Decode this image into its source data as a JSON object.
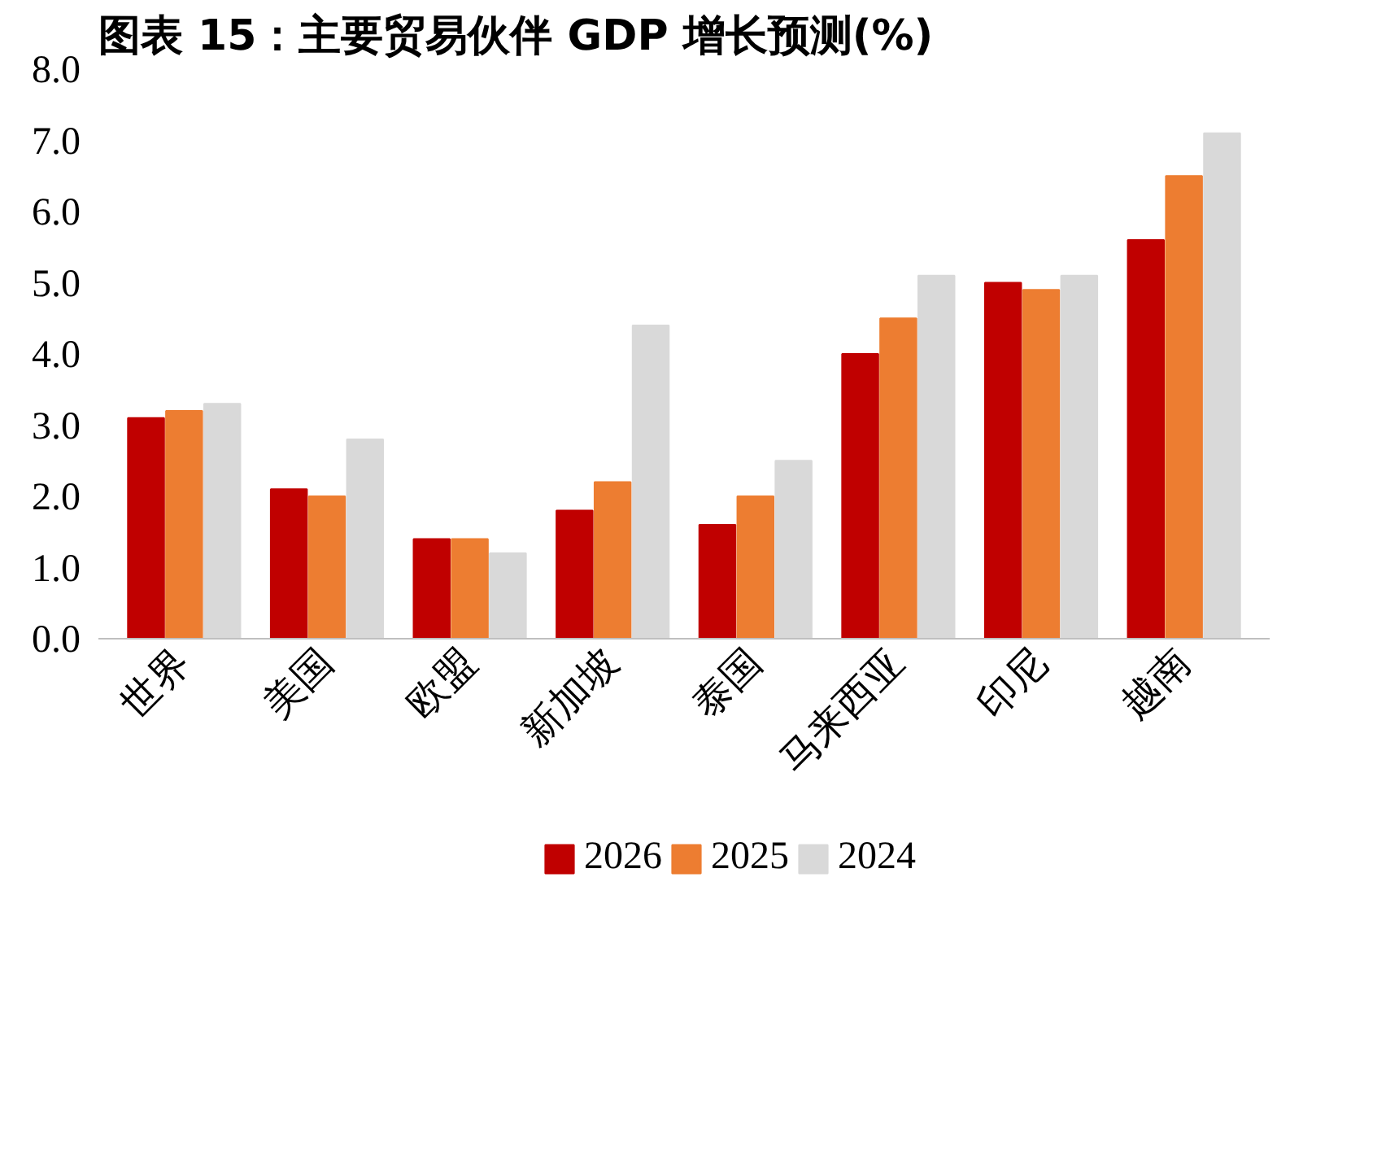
{
  "chart_data": {
    "type": "bar",
    "title": "图表 15：主要贸易伙伴 GDP 增长预测(%)",
    "categories": [
      "世界",
      "美国",
      "欧盟",
      "新加坡",
      "泰国",
      "马来西亚",
      "印尼",
      "越南"
    ],
    "series": [
      {
        "name": "2026",
        "color": "#c00000",
        "values": [
          3.1,
          2.1,
          1.4,
          1.8,
          1.6,
          4.0,
          5.0,
          5.6
        ]
      },
      {
        "name": "2025",
        "color": "#ed7d31",
        "values": [
          3.2,
          2.0,
          1.4,
          2.2,
          2.0,
          4.5,
          4.9,
          6.5
        ]
      },
      {
        "name": "2024",
        "color": "#d9d9d9",
        "values": [
          3.3,
          2.8,
          1.2,
          4.4,
          2.5,
          5.1,
          5.1,
          7.1
        ]
      }
    ],
    "ylim": [
      0,
      8
    ],
    "yticks": [
      {
        "value": 0,
        "label": "0.0"
      },
      {
        "value": 1,
        "label": "1.0"
      },
      {
        "value": 2,
        "label": "2.0"
      },
      {
        "value": 3,
        "label": "3.0"
      },
      {
        "value": 4,
        "label": "4.0"
      },
      {
        "value": 5,
        "label": "5.0"
      },
      {
        "value": 6,
        "label": "6.0"
      },
      {
        "value": 7,
        "label": "7.0"
      },
      {
        "value": 8,
        "label": "8.0"
      }
    ],
    "grid": false,
    "legend": "bottom"
  }
}
